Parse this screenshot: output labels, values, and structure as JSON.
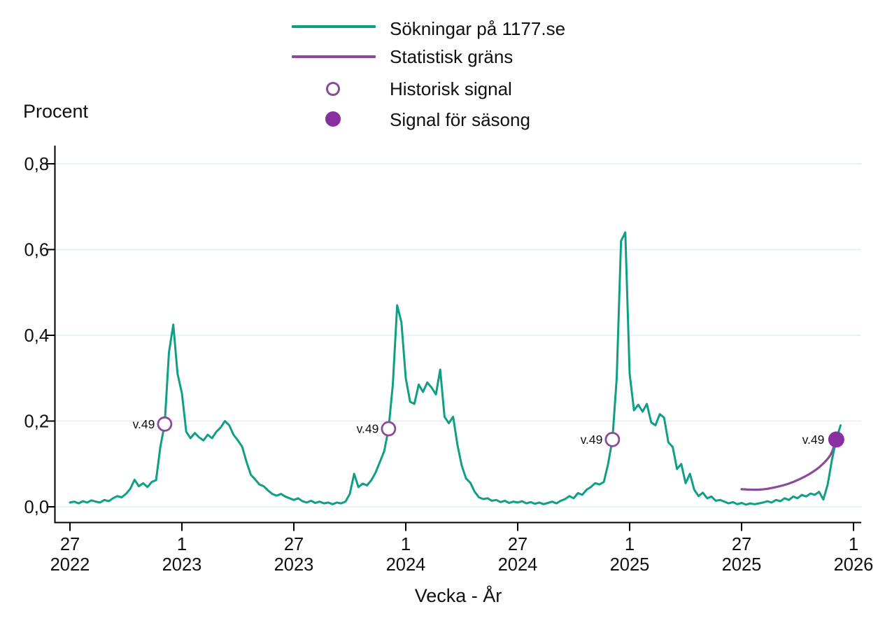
{
  "colors": {
    "background": "#ffffff",
    "axis": "#000000",
    "grid": "#e2edf3",
    "text": "#101010",
    "series_teal": "#0f9f85",
    "threshold_purple": "#8a4b98",
    "signal_open_purple": "#8a4b98",
    "signal_filled_purple": "#8a2f9f"
  },
  "legend": {
    "items": [
      {
        "label": "Sökningar på 1177.se",
        "marker": "line",
        "color": "#0f9f85"
      },
      {
        "label": "Statistisk gräns",
        "marker": "line",
        "color": "#8a4b98"
      },
      {
        "label": "Historisk signal",
        "marker": "circle-open",
        "color": "#8a4b98"
      },
      {
        "label": "Signal för säsong",
        "marker": "circle-filled",
        "color": "#8a2f9f"
      }
    ]
  },
  "chart_data": {
    "type": "line",
    "title": "",
    "ylabel": "Procent",
    "xlabel": "Vecka - År",
    "ylim": [
      0.0,
      0.8
    ],
    "grid": true,
    "legend_position": "top-center",
    "y_ticks": [
      {
        "value": 0.0,
        "label": "0,0"
      },
      {
        "value": 0.2,
        "label": "0,2"
      },
      {
        "value": 0.4,
        "label": "0,4"
      },
      {
        "value": 0.6,
        "label": "0,6"
      },
      {
        "value": 0.8,
        "label": "0,8"
      }
    ],
    "x_axis_unit": "vecka (week), weekly resolution",
    "x_ticks": [
      {
        "week_index": 0,
        "week": "27",
        "year": "2022"
      },
      {
        "week_index": 26,
        "week": "1",
        "year": "2023"
      },
      {
        "week_index": 52,
        "week": "27",
        "year": "2023"
      },
      {
        "week_index": 78,
        "week": "1",
        "year": "2024"
      },
      {
        "week_index": 104,
        "week": "27",
        "year": "2024"
      },
      {
        "week_index": 130,
        "week": "1",
        "year": "2025"
      },
      {
        "week_index": 156,
        "week": "27",
        "year": "2025"
      },
      {
        "week_index": 182,
        "week": "1",
        "year": "2026"
      }
    ],
    "series": [
      {
        "name": "Sökningar på 1177.se",
        "color": "#0f9f85",
        "start_week": "vecka 27, 2022",
        "step_weeks": 1,
        "values": [
          0.01,
          0.012,
          0.008,
          0.013,
          0.01,
          0.015,
          0.012,
          0.01,
          0.016,
          0.013,
          0.02,
          0.025,
          0.022,
          0.03,
          0.042,
          0.063,
          0.048,
          0.055,
          0.046,
          0.058,
          0.062,
          0.14,
          0.193,
          0.36,
          0.425,
          0.31,
          0.265,
          0.175,
          0.16,
          0.172,
          0.162,
          0.155,
          0.168,
          0.16,
          0.175,
          0.185,
          0.2,
          0.19,
          0.168,
          0.155,
          0.14,
          0.105,
          0.075,
          0.064,
          0.052,
          0.048,
          0.038,
          0.03,
          0.026,
          0.03,
          0.024,
          0.02,
          0.016,
          0.02,
          0.013,
          0.01,
          0.014,
          0.009,
          0.012,
          0.008,
          0.01,
          0.006,
          0.01,
          0.008,
          0.012,
          0.03,
          0.077,
          0.046,
          0.054,
          0.05,
          0.062,
          0.08,
          0.105,
          0.13,
          0.182,
          0.285,
          0.47,
          0.43,
          0.3,
          0.245,
          0.24,
          0.285,
          0.268,
          0.29,
          0.278,
          0.262,
          0.32,
          0.21,
          0.195,
          0.21,
          0.145,
          0.096,
          0.066,
          0.056,
          0.035,
          0.022,
          0.018,
          0.02,
          0.014,
          0.016,
          0.011,
          0.014,
          0.009,
          0.012,
          0.01,
          0.013,
          0.008,
          0.011,
          0.007,
          0.01,
          0.006,
          0.009,
          0.012,
          0.008,
          0.014,
          0.018,
          0.025,
          0.02,
          0.032,
          0.028,
          0.04,
          0.046,
          0.055,
          0.052,
          0.058,
          0.1,
          0.157,
          0.3,
          0.62,
          0.64,
          0.31,
          0.225,
          0.238,
          0.222,
          0.24,
          0.197,
          0.19,
          0.216,
          0.208,
          0.15,
          0.14,
          0.088,
          0.1,
          0.055,
          0.077,
          0.04,
          0.025,
          0.033,
          0.02,
          0.024,
          0.014,
          0.016,
          0.012,
          0.008,
          0.011,
          0.006,
          0.009,
          0.005,
          0.008,
          0.006,
          0.008,
          0.01,
          0.013,
          0.01,
          0.016,
          0.013,
          0.02,
          0.016,
          0.024,
          0.02,
          0.028,
          0.024,
          0.031,
          0.028,
          0.035,
          0.017,
          0.052,
          0.11,
          0.157,
          0.19
        ]
      },
      {
        "name": "Statistisk gräns",
        "color": "#8a4b98",
        "points": [
          [
            156,
            0.041
          ],
          [
            158,
            0.04
          ],
          [
            160,
            0.04
          ],
          [
            162,
            0.042
          ],
          [
            164,
            0.046
          ],
          [
            166,
            0.051
          ],
          [
            168,
            0.058
          ],
          [
            170,
            0.067
          ],
          [
            172,
            0.078
          ],
          [
            174,
            0.092
          ],
          [
            176,
            0.112
          ],
          [
            177,
            0.128
          ],
          [
            178,
            0.157
          ]
        ]
      }
    ],
    "signals": {
      "historical": [
        {
          "week_index": 22,
          "label": "v.49",
          "season": "2022",
          "value": 0.193
        },
        {
          "week_index": 74,
          "label": "v.49",
          "season": "2023",
          "value": 0.182
        },
        {
          "week_index": 126,
          "label": "v.49",
          "season": "2024",
          "value": 0.157
        }
      ],
      "season": [
        {
          "week_index": 178,
          "label": "v.49",
          "season": "2025",
          "value": 0.157
        }
      ]
    }
  }
}
